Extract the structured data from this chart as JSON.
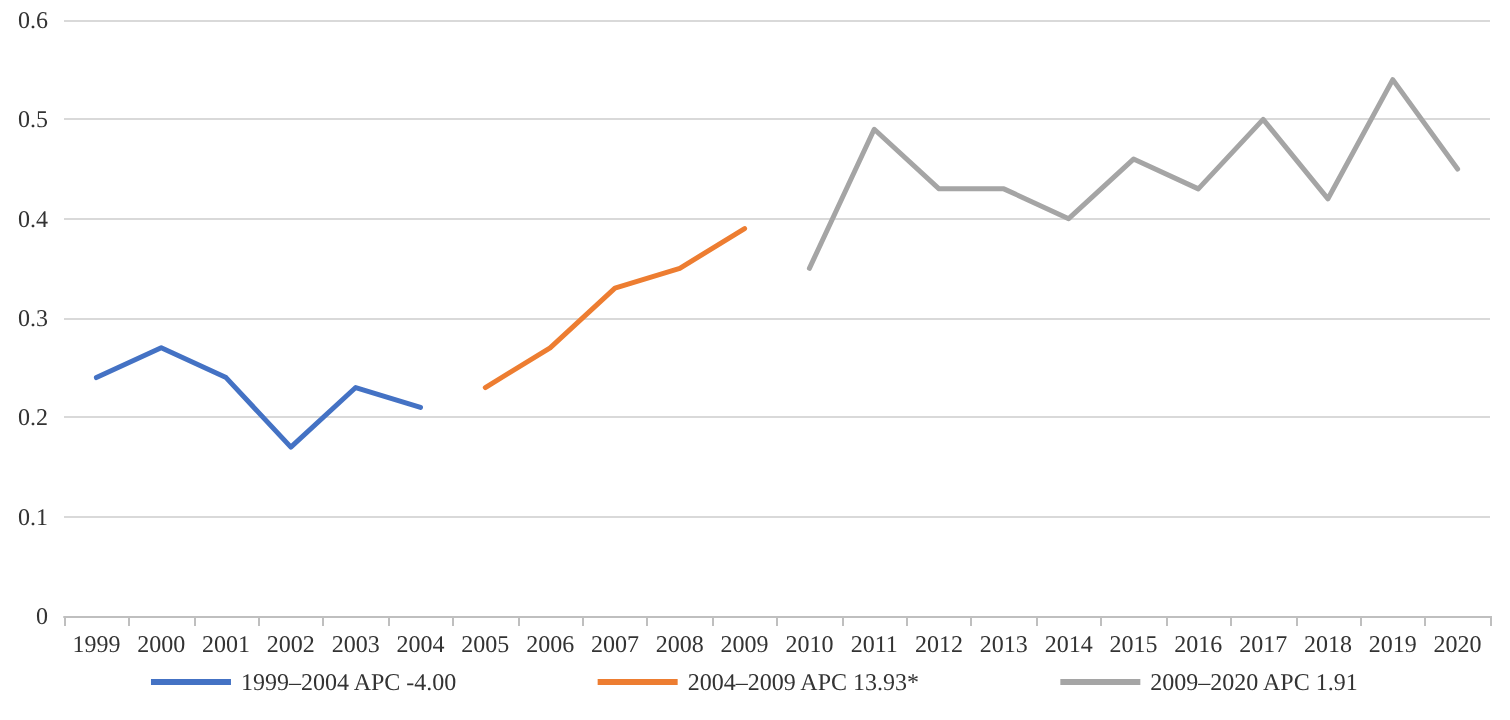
{
  "chart_data": {
    "type": "line",
    "categories": [
      "1999",
      "2000",
      "2001",
      "2002",
      "2003",
      "2004",
      "2005",
      "2006",
      "2007",
      "2008",
      "2009",
      "2010",
      "2011",
      "2012",
      "2013",
      "2014",
      "2015",
      "2016",
      "2017",
      "2018",
      "2019",
      "2020"
    ],
    "series": [
      {
        "name": "1999–2004 APC -4.00",
        "color": "#4472c4",
        "values": [
          0.24,
          0.27,
          0.24,
          0.17,
          0.23,
          0.21,
          null,
          null,
          null,
          null,
          null,
          null,
          null,
          null,
          null,
          null,
          null,
          null,
          null,
          null,
          null,
          null
        ]
      },
      {
        "name": "2004–2009 APC 13.93*",
        "color": "#ed7d31",
        "values": [
          null,
          null,
          null,
          null,
          null,
          null,
          0.23,
          0.27,
          0.33,
          0.35,
          0.39,
          null,
          null,
          null,
          null,
          null,
          null,
          null,
          null,
          null,
          null,
          null
        ]
      },
      {
        "name": "2009–2020 APC 1.91",
        "color": "#a5a5a5",
        "values": [
          null,
          null,
          null,
          null,
          null,
          null,
          null,
          null,
          null,
          null,
          null,
          0.35,
          0.49,
          0.43,
          0.43,
          0.4,
          0.46,
          0.43,
          0.5,
          0.42,
          0.54,
          0.45
        ]
      }
    ],
    "ylim": [
      0,
      0.6
    ],
    "yticks": [
      0,
      0.1,
      0.2,
      0.3,
      0.4,
      0.5,
      0.6
    ],
    "grid": "y",
    "legend": "bottom",
    "marker": "none",
    "line_style": "solid"
  }
}
